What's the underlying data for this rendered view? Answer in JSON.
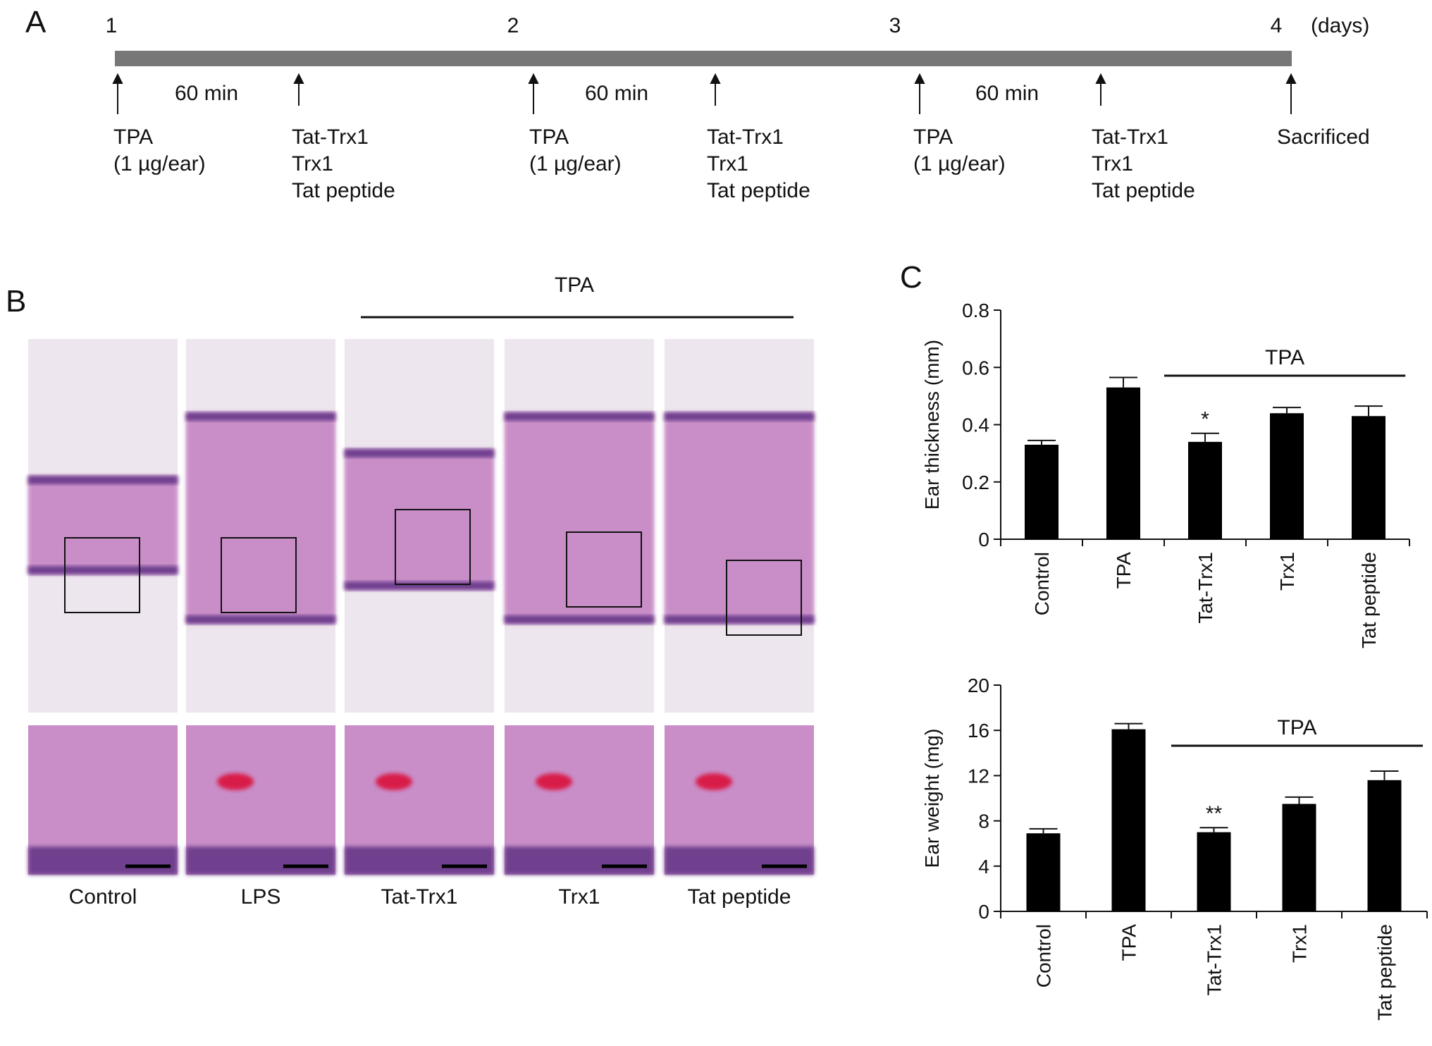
{
  "panel_a": {
    "label": "A",
    "days": [
      "1",
      "2",
      "3",
      "4"
    ],
    "days_unit": "(days)",
    "intervals": [
      "60 min",
      "60 min",
      "60 min"
    ],
    "events": [
      {
        "lines": [
          "TPA",
          "(1 µg/ear)"
        ]
      },
      {
        "lines": [
          "Tat-Trx1",
          "Trx1",
          "Tat peptide"
        ]
      },
      {
        "lines": [
          "TPA",
          "(1 µg/ear)"
        ]
      },
      {
        "lines": [
          "Tat-Trx1",
          "Trx1",
          "Tat peptide"
        ]
      },
      {
        "lines": [
          "TPA",
          "(1 µg/ear)"
        ]
      },
      {
        "lines": [
          "Tat-Trx1",
          "Trx1",
          "Tat peptide"
        ]
      },
      {
        "lines": [
          "Sacrificed"
        ]
      }
    ]
  },
  "panel_b": {
    "label": "B",
    "group_label": "TPA",
    "images": [
      {
        "label": "Control",
        "tissue_style": "thin"
      },
      {
        "label": "LPS",
        "tissue_style": "thick"
      },
      {
        "label": "Tat-Trx1",
        "tissue_style": "medium"
      },
      {
        "label": "Trx1",
        "tissue_style": "thick"
      },
      {
        "label": "Tat peptide",
        "tissue_style": "thick"
      }
    ],
    "colors": {
      "background": "#ede6ee",
      "tissue": "#c98ec8",
      "epidermis": "#6f3f8f",
      "vessel": "#d81f4a"
    }
  },
  "panel_c": {
    "label": "C"
  },
  "chart_data": [
    {
      "type": "bar",
      "categories": [
        "Control",
        "TPA",
        "Tat-Trx1",
        "Trx1",
        "Tat peptide"
      ],
      "values": [
        0.33,
        0.53,
        0.34,
        0.44,
        0.43
      ],
      "errors": [
        0.015,
        0.035,
        0.03,
        0.02,
        0.035
      ],
      "ylabel": "Ear thickness (mm)",
      "ylim": [
        0,
        0.8
      ],
      "yticks": [
        "0",
        "0.2",
        "0.4",
        "0.6",
        "0.8"
      ],
      "group_label": "TPA",
      "annotations": [
        {
          "category": "Tat-Trx1",
          "text": "*"
        }
      ],
      "bar_color": "#000000"
    },
    {
      "type": "bar",
      "categories": [
        "Control",
        "TPA",
        "Tat-Trx1",
        "Trx1",
        "Tat peptide"
      ],
      "values": [
        6.9,
        16.1,
        7.0,
        9.5,
        11.6
      ],
      "errors": [
        0.4,
        0.5,
        0.4,
        0.6,
        0.8
      ],
      "ylabel": "Ear weight (mg)",
      "ylim": [
        0,
        20
      ],
      "yticks": [
        "0",
        "4",
        "8",
        "12",
        "16",
        "20"
      ],
      "group_label": "TPA",
      "annotations": [
        {
          "category": "Tat-Trx1",
          "text": "**"
        }
      ],
      "bar_color": "#000000"
    }
  ]
}
